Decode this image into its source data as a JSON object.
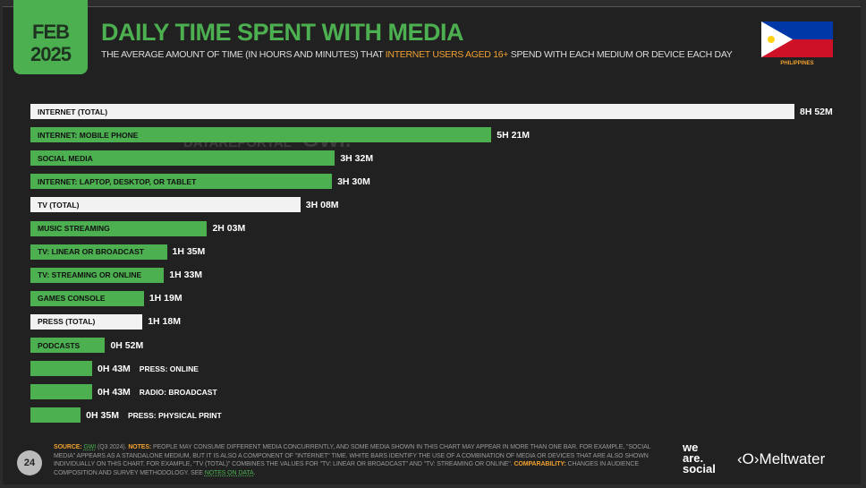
{
  "header": {
    "month": "FEB",
    "year": "2025",
    "title": "DAILY TIME SPENT WITH MEDIA",
    "subtitle_pre": "THE AVERAGE AMOUNT OF TIME (IN HOURS AND MINUTES) THAT ",
    "subtitle_highlight": "INTERNET USERS AGED 16+",
    "subtitle_post": " SPEND WITH EACH MEDIUM OR DEVICE EACH DAY",
    "country": "PHILIPPINES"
  },
  "watermark": {
    "left": "DATAREPORTAL",
    "right": "GWI."
  },
  "chart_data": {
    "type": "bar",
    "orientation": "horizontal",
    "unit": "minutes",
    "title": "DAILY TIME SPENT WITH MEDIA",
    "categories": [
      "INTERNET (TOTAL)",
      "INTERNET: MOBILE PHONE",
      "SOCIAL MEDIA",
      "INTERNET: LAPTOP, DESKTOP, OR TABLET",
      "TV (TOTAL)",
      "MUSIC STREAMING",
      "TV: LINEAR OR BROADCAST",
      "TV: STREAMING OR ONLINE",
      "GAMES CONSOLE",
      "PRESS (TOTAL)",
      "PODCASTS",
      "PRESS: ONLINE",
      "RADIO: BROADCAST",
      "PRESS: PHYSICAL PRINT"
    ],
    "values": [
      532,
      321,
      212,
      210,
      188,
      123,
      95,
      93,
      79,
      78,
      52,
      43,
      43,
      35
    ],
    "value_labels": [
      "8H 52M",
      "5H 21M",
      "3H 32M",
      "3H 30M",
      "3H 08M",
      "2H 03M",
      "1H 35M",
      "1H 33M",
      "1H 19M",
      "1H 18M",
      "0H 52M",
      "0H 43M",
      "0H 43M",
      "0H 35M"
    ],
    "bar_colors": [
      "white",
      "green",
      "green",
      "green",
      "white",
      "green",
      "green",
      "green",
      "green",
      "white",
      "green",
      "green",
      "green",
      "green"
    ]
  },
  "colors": {
    "green": "#4caf50",
    "white": "#f2f2f2",
    "orange": "#f0a030"
  },
  "footer": {
    "page": "24",
    "source_label": "SOURCE:",
    "source": "GWI",
    "source_detail": " (Q3 2024). ",
    "notes_label": "NOTES:",
    "notes": " PEOPLE MAY CONSUME DIFFERENT MEDIA CONCURRENTLY, AND SOME MEDIA SHOWN IN THIS CHART MAY APPEAR IN MORE THAN ONE BAR. FOR EXAMPLE, \"SOCIAL MEDIA\" APPEARS AS A STANDALONE MEDIUM, BUT IT IS ALSO A COMPONENT OF \"INTERNET\" TIME. WHITE BARS IDENTIFY THE USE OF A COMBINATION OF MEDIA OR DEVICES THAT ARE ALSO SHOWN INDIVIDUALLY ON THIS CHART. FOR EXAMPLE, \"TV (TOTAL)\" COMBINES THE VALUES FOR \"TV: LINEAR OR BROADCAST\" AND \"TV: STREAMING OR ONLINE\". ",
    "comparability_label": "COMPARABILITY:",
    "comparability": " CHANGES IN AUDIENCE COMPOSITION AND SURVEY METHODOLOGY. SEE ",
    "notes_link": "NOTES ON DATA",
    "end": ".",
    "logo1": "we are social",
    "logo2": "Meltwater"
  }
}
